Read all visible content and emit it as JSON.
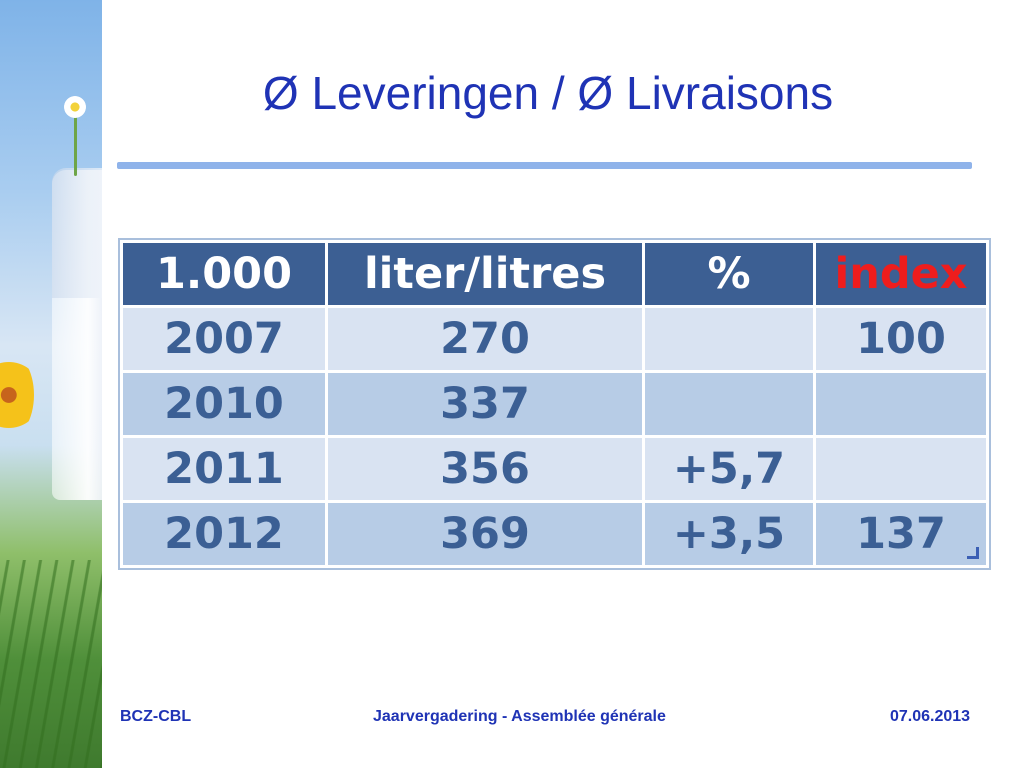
{
  "slide": {
    "title": "Ø Leveringen / Ø Livraisons"
  },
  "table": {
    "headers": [
      "1.000",
      "liter/litres",
      "%",
      "index"
    ],
    "rows": [
      {
        "year": "2007",
        "litres": "270",
        "pct": "",
        "index": "100"
      },
      {
        "year": "2010",
        "litres": "337",
        "pct": "",
        "index": ""
      },
      {
        "year": "2011",
        "litres": "356",
        "pct": "+5,7",
        "index": ""
      },
      {
        "year": "2012",
        "litres": "369",
        "pct": "+3,5",
        "index": "137"
      }
    ]
  },
  "footer": {
    "left": "BCZ-CBL",
    "center": "Jaarvergadering  -  Assemblée générale",
    "right": "07.06.2013"
  },
  "colors": {
    "title": "#1f33b5",
    "header_bg": "#3c5f93",
    "index_red": "#ee1d1d",
    "row_light": "#d9e3f2",
    "row_dark": "#b7cce6"
  }
}
